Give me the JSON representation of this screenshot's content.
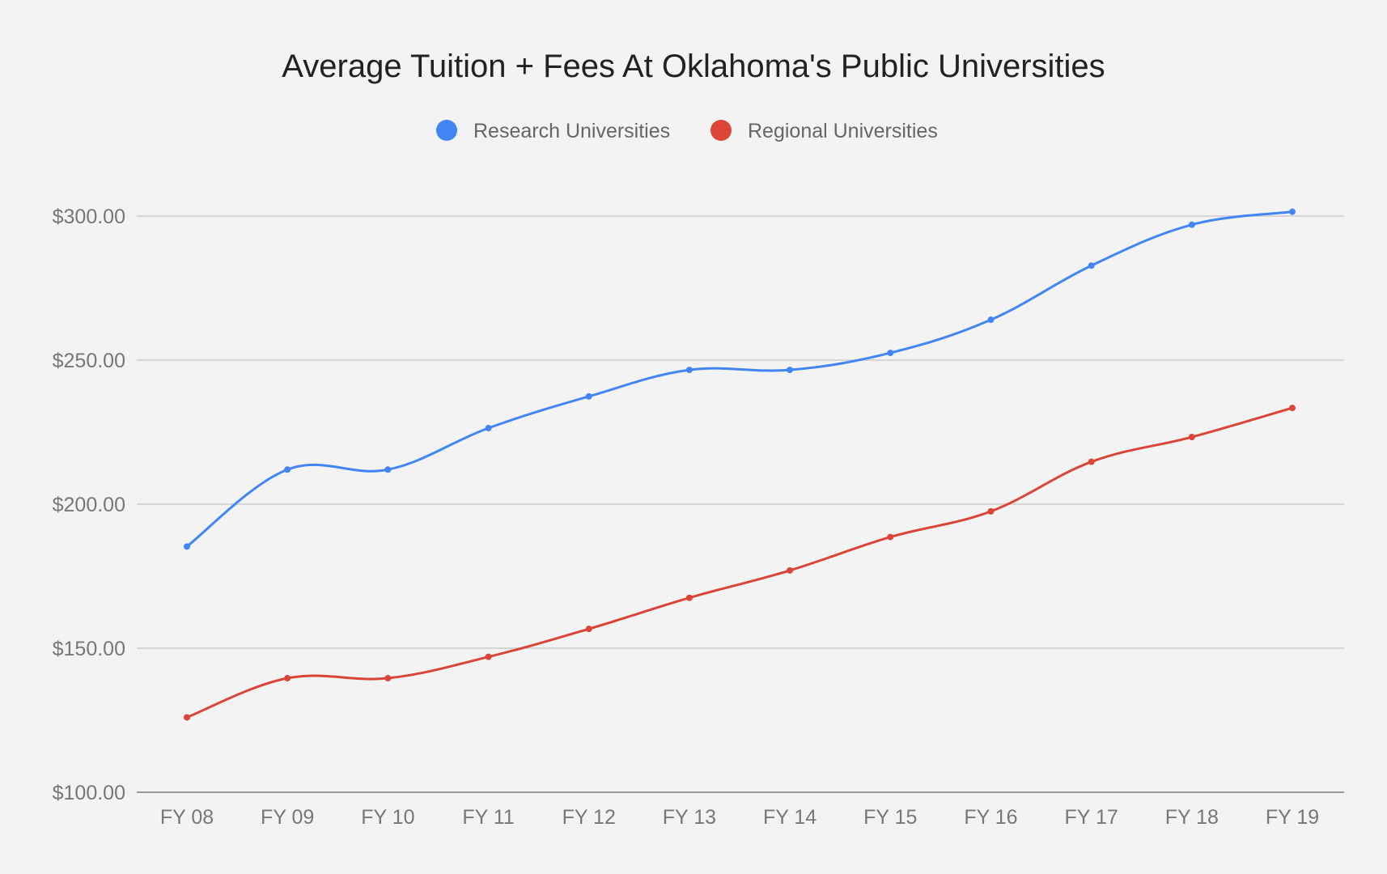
{
  "chart_data": {
    "type": "line",
    "title": "Average Tuition + Fees At Oklahoma's Public Universities",
    "categories": [
      "FY 08",
      "FY 09",
      "FY 10",
      "FY 11",
      "FY 12",
      "FY 13",
      "FY 14",
      "FY 15",
      "FY 16",
      "FY 17",
      "FY 18",
      "FY 19"
    ],
    "series": [
      {
        "name": "Research Universities",
        "color": "#4285f4",
        "values": [
          185.3,
          212.0,
          212.0,
          226.4,
          237.4,
          246.6,
          246.6,
          252.5,
          264.0,
          282.8,
          297.0,
          301.5
        ]
      },
      {
        "name": "Regional Universities",
        "color": "#db4437",
        "values": [
          126.0,
          139.6,
          139.6,
          147.0,
          156.7,
          167.5,
          177.0,
          188.6,
          197.5,
          214.7,
          223.3,
          233.4
        ]
      }
    ],
    "ylim": [
      100,
      300
    ],
    "yticks": [
      100,
      150,
      200,
      250,
      300
    ],
    "ytick_labels": [
      "$100.00",
      "$150.00",
      "$200.00",
      "$250.00",
      "$300.00"
    ],
    "legend_position": "top",
    "grid": true,
    "smooth": true
  }
}
